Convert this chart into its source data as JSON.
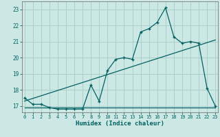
{
  "title": "",
  "xlabel": "Humidex (Indice chaleur)",
  "background_color": "#cce8e4",
  "grid_color": "#aacfcb",
  "line_color": "#006060",
  "x_values": [
    0,
    1,
    2,
    3,
    4,
    5,
    6,
    7,
    8,
    9,
    10,
    11,
    12,
    13,
    14,
    15,
    16,
    17,
    18,
    19,
    20,
    21,
    22,
    23
  ],
  "series1": [
    17.5,
    17.1,
    17.1,
    16.9,
    16.8,
    16.8,
    16.8,
    16.8,
    18.3,
    17.3,
    19.2,
    19.9,
    20.0,
    19.9,
    21.6,
    21.8,
    22.2,
    23.1,
    21.3,
    20.9,
    21.0,
    20.9,
    18.1,
    17.0
  ],
  "flat_line_x": [
    0,
    23
  ],
  "flat_line_y": [
    16.9,
    16.9
  ],
  "trend_x": [
    0,
    23
  ],
  "trend_y": [
    17.3,
    21.1
  ],
  "ylim_min": 16.6,
  "ylim_max": 23.5,
  "xlim_min": -0.3,
  "xlim_max": 23.3,
  "yticks": [
    17,
    18,
    19,
    20,
    21,
    22,
    23
  ],
  "xticks": [
    0,
    1,
    2,
    3,
    4,
    5,
    6,
    7,
    8,
    9,
    10,
    11,
    12,
    13,
    14,
    15,
    16,
    17,
    18,
    19,
    20,
    21,
    22,
    23
  ]
}
